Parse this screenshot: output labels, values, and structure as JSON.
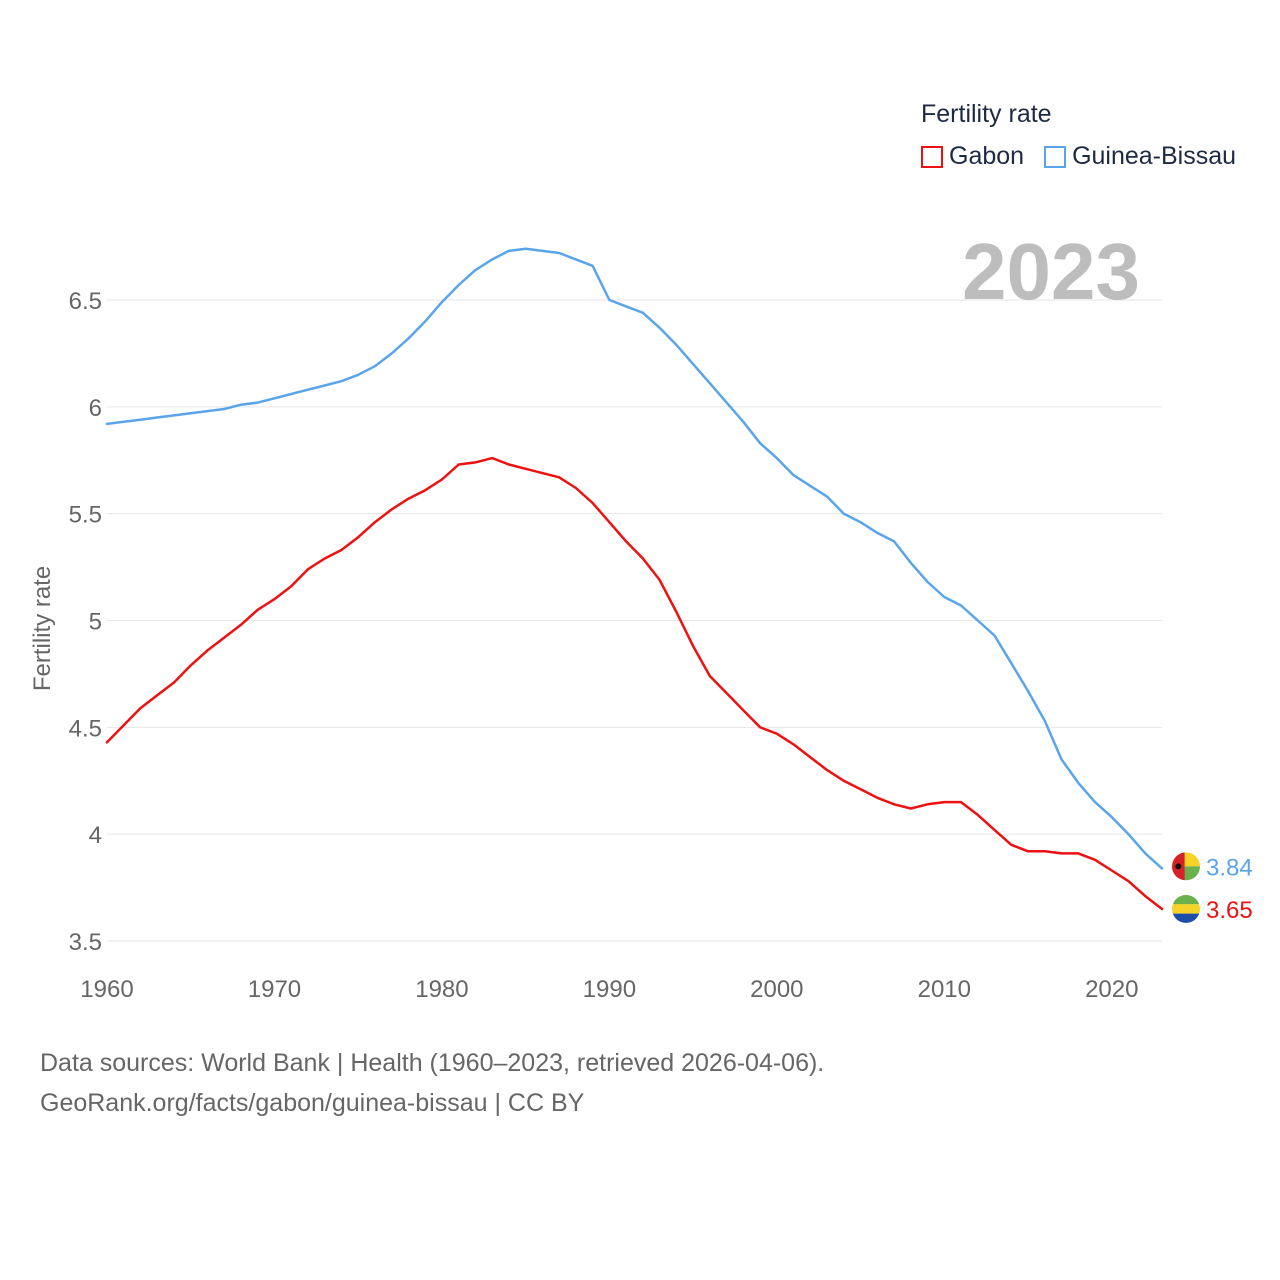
{
  "legend": {
    "title": "Fertility rate",
    "series": [
      {
        "name": "Gabon",
        "color": "#ee1111"
      },
      {
        "name": "Guinea-Bissau",
        "color": "#5aa5ea"
      }
    ]
  },
  "year_label": "2023",
  "footer": {
    "line1": "Data sources: World Bank | Health (1960–2023, retrieved 2026-04-06).",
    "line2": "GeoRank.org/facts/gabon/guinea-bissau | CC BY"
  },
  "chart_data": {
    "type": "line",
    "title": "Fertility rate",
    "xlabel": "",
    "ylabel": "Fertility rate",
    "xlim": [
      1960,
      2023
    ],
    "ylim": [
      3.5,
      6.5
    ],
    "xticks": [
      1960,
      1970,
      1980,
      1990,
      2000,
      2010,
      2020
    ],
    "yticks": [
      3.5,
      4,
      4.5,
      5,
      5.5,
      6,
      6.5
    ],
    "grid": true,
    "legend_position": "top-right",
    "x": [
      1960,
      1961,
      1962,
      1963,
      1964,
      1965,
      1966,
      1967,
      1968,
      1969,
      1970,
      1971,
      1972,
      1973,
      1974,
      1975,
      1976,
      1977,
      1978,
      1979,
      1980,
      1981,
      1982,
      1983,
      1984,
      1985,
      1986,
      1987,
      1988,
      1989,
      1990,
      1991,
      1992,
      1993,
      1994,
      1995,
      1996,
      1997,
      1998,
      1999,
      2000,
      2001,
      2002,
      2003,
      2004,
      2005,
      2006,
      2007,
      2008,
      2009,
      2010,
      2011,
      2012,
      2013,
      2014,
      2015,
      2016,
      2017,
      2018,
      2019,
      2020,
      2021,
      2022,
      2023
    ],
    "series": [
      {
        "name": "Gabon",
        "color": "#ee1111",
        "end_label": "3.65",
        "values": [
          4.43,
          4.51,
          4.59,
          4.65,
          4.71,
          4.79,
          4.86,
          4.92,
          4.98,
          5.05,
          5.1,
          5.16,
          5.24,
          5.29,
          5.33,
          5.39,
          5.46,
          5.52,
          5.57,
          5.61,
          5.66,
          5.73,
          5.74,
          5.76,
          5.73,
          5.71,
          5.69,
          5.67,
          5.62,
          5.55,
          5.46,
          5.37,
          5.29,
          5.19,
          5.04,
          4.88,
          4.74,
          4.66,
          4.58,
          4.5,
          4.47,
          4.42,
          4.36,
          4.3,
          4.25,
          4.21,
          4.17,
          4.14,
          4.12,
          4.14,
          4.15,
          4.15,
          4.09,
          4.02,
          3.95,
          3.92,
          3.92,
          3.91,
          3.91,
          3.88,
          3.83,
          3.78,
          3.71,
          3.65
        ]
      },
      {
        "name": "Guinea-Bissau",
        "color": "#5aa5ea",
        "end_label": "3.84",
        "values": [
          5.92,
          5.93,
          5.94,
          5.95,
          5.96,
          5.97,
          5.98,
          5.99,
          6.01,
          6.02,
          6.04,
          6.06,
          6.08,
          6.1,
          6.12,
          6.15,
          6.19,
          6.25,
          6.32,
          6.4,
          6.49,
          6.57,
          6.64,
          6.69,
          6.73,
          6.74,
          6.73,
          6.72,
          6.69,
          6.66,
          6.5,
          6.47,
          6.44,
          6.37,
          6.29,
          6.2,
          6.11,
          6.02,
          5.93,
          5.83,
          5.76,
          5.68,
          5.63,
          5.58,
          5.5,
          5.46,
          5.41,
          5.37,
          5.27,
          5.18,
          5.11,
          5.07,
          5.0,
          4.93,
          4.8,
          4.67,
          4.53,
          4.35,
          4.24,
          4.15,
          4.08,
          4.0,
          3.91,
          3.84
        ]
      }
    ]
  }
}
